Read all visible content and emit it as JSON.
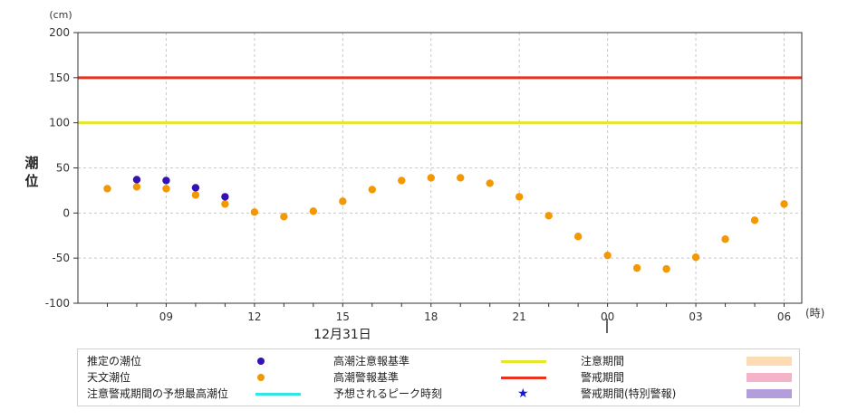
{
  "chart_data": {
    "type": "scatter",
    "y_unit": "(cm)",
    "ylabel": "潮位",
    "x_unit": "(時)",
    "ylim": [
      -100,
      200
    ],
    "yticks": [
      -100,
      -50,
      0,
      50,
      100,
      150,
      200
    ],
    "x_hours": [
      7,
      8,
      9,
      10,
      11,
      12,
      13,
      14,
      15,
      16,
      17,
      18,
      19,
      20,
      21,
      22,
      23,
      24,
      25,
      26,
      27,
      28,
      29,
      30
    ],
    "x_tick_labels": [
      {
        "hour": 9,
        "label": "09"
      },
      {
        "hour": 12,
        "label": "12"
      },
      {
        "hour": 15,
        "label": "15"
      },
      {
        "hour": 18,
        "label": "18"
      },
      {
        "hour": 21,
        "label": "21"
      },
      {
        "hour": 24,
        "label": "00"
      },
      {
        "hour": 27,
        "label": "03"
      },
      {
        "hour": 30,
        "label": "06"
      }
    ],
    "date_label": "12月31日",
    "thresholds": [
      {
        "name": "高潮警報基準",
        "value": 150,
        "color": "#e8321e"
      },
      {
        "name": "高潮注意報基準",
        "value": 100,
        "color": "#e6e629"
      }
    ],
    "series": [
      {
        "name": "天文潮位",
        "color": "#f39800",
        "points": [
          [
            7,
            27
          ],
          [
            8,
            29
          ],
          [
            9,
            27
          ],
          [
            10,
            20
          ],
          [
            11,
            10
          ],
          [
            12,
            1
          ],
          [
            13,
            -4
          ],
          [
            14,
            2
          ],
          [
            15,
            13
          ],
          [
            16,
            26
          ],
          [
            17,
            36
          ],
          [
            18,
            39
          ],
          [
            19,
            39
          ],
          [
            20,
            33
          ],
          [
            21,
            18
          ],
          [
            22,
            -3
          ],
          [
            23,
            -26
          ],
          [
            24,
            -47
          ],
          [
            25,
            -61
          ],
          [
            26,
            -62
          ],
          [
            27,
            -49
          ],
          [
            28,
            -29
          ],
          [
            29,
            -8
          ],
          [
            30,
            10
          ]
        ]
      },
      {
        "name": "推定の潮位",
        "color": "#3411b3",
        "points": [
          [
            8,
            37
          ],
          [
            9,
            36
          ],
          [
            10,
            28
          ],
          [
            11,
            18
          ]
        ]
      }
    ]
  },
  "legend": [
    {
      "label": "推定の潮位",
      "symbol": "dot",
      "color": "#3411b3"
    },
    {
      "label": "天文潮位",
      "symbol": "dot",
      "color": "#f39800"
    },
    {
      "label": "注意警戒期間の予想最高潮位",
      "symbol": "line",
      "color": "#33e6e6"
    },
    {
      "label": "高潮注意報基準",
      "symbol": "line",
      "color": "#e6e629"
    },
    {
      "label": "高潮警報基準",
      "symbol": "line",
      "color": "#e8321e"
    },
    {
      "label": "予想されるピーク時刻",
      "symbol": "star",
      "color": "#1616d9"
    },
    {
      "label": "注意期間",
      "symbol": "rect",
      "color": "#fddcb4"
    },
    {
      "label": "警戒期間",
      "symbol": "rect",
      "color": "#f5b3c9"
    },
    {
      "label": "警戒期間(特別警報)",
      "symbol": "rect",
      "color": "#b39ddb"
    }
  ]
}
